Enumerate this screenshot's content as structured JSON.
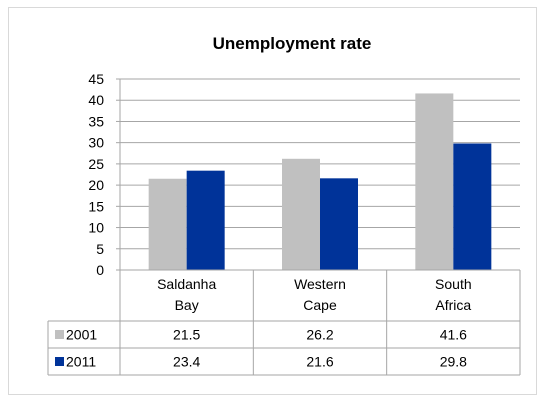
{
  "chart_data": {
    "type": "bar",
    "title": "Unemployment rate",
    "categories": [
      [
        "Saldanha",
        "Bay"
      ],
      [
        "Western",
        "Cape"
      ],
      [
        "South",
        "Africa"
      ]
    ],
    "series": [
      {
        "name": "2001",
        "color": "#c0c0c0",
        "values": [
          21.5,
          26.2,
          41.6
        ]
      },
      {
        "name": "2011",
        "color": "#003399",
        "values": [
          23.4,
          21.6,
          29.8
        ]
      }
    ],
    "value_labels": [
      [
        "21.5",
        "26.2",
        "41.6"
      ],
      [
        "23.4",
        "21.6",
        "29.8"
      ]
    ],
    "y_ticks": [
      "0",
      "5",
      "10",
      "15",
      "20",
      "25",
      "30",
      "35",
      "40",
      "45"
    ],
    "ylim": [
      0,
      45
    ],
    "grid": true,
    "legend": "data-table"
  }
}
